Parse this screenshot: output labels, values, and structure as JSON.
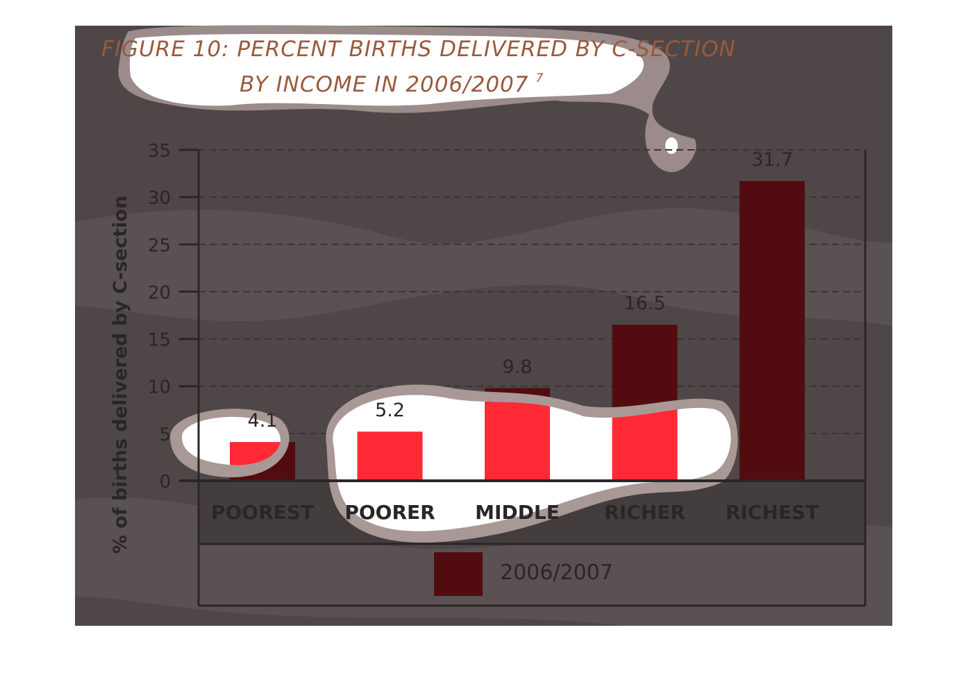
{
  "colors": {
    "background": "#4f4747",
    "band": "#5a5252",
    "bar": "#520c0f",
    "bar_highlight": "#ff2a35",
    "title": "#9a5a3c",
    "axis": "#2a2626",
    "blob_fill": "#ffffff",
    "blob_edge": "#a89896"
  },
  "chart_data": {
    "type": "bar",
    "title_line1": "FIGURE 10: PERCENT BIRTHS DELIVERED BY C-SECTION",
    "title_line2": "BY INCOME IN 2006/2007",
    "title_superscript": "7",
    "ylabel": "% of births delivered by C-section",
    "xlabel": "",
    "ylim": [
      0,
      35
    ],
    "yticks": [
      0,
      5,
      10,
      15,
      20,
      25,
      30,
      35
    ],
    "grid": true,
    "categories": [
      "POOREST",
      "POORER",
      "MIDDLE",
      "RICHER",
      "RICHEST"
    ],
    "series": [
      {
        "name": "2006/2007",
        "values": [
          4.1,
          5.2,
          9.8,
          16.5,
          31.7
        ]
      }
    ],
    "data_labels": [
      "4.1",
      "5.2",
      "9.8",
      "16.5",
      "31.7"
    ],
    "legend_position": "bottom"
  }
}
